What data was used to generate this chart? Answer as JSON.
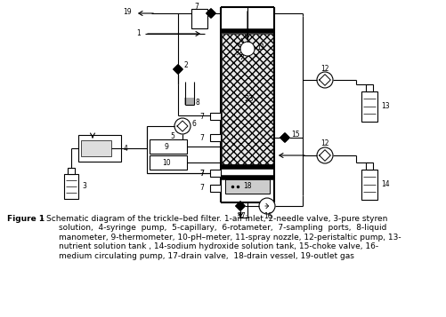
{
  "bg_color": "#ffffff",
  "line_color": "#000000",
  "caption_bold": "Figure 1",
  "caption_rest": " - Schematic diagram of the trickle–bed filter. 1-air inlet, 2-needle valve, 3-pure styren\n        solution,  4-syringe  pump,  5-capillary,  6-rotameter,  7-sampling  ports,  8-liquid\n        manometer, 9-thermometer, 10-pH–meter, 11-spray nozzle, 12-peristaltic pump, 13-\n        nutrient solution tank , 14-sodium hydroxide solution tank, 15-choke valve, 16-\n        medium circulating pump, 17-drain valve,  18-drain vessel, 19-outlet gas"
}
